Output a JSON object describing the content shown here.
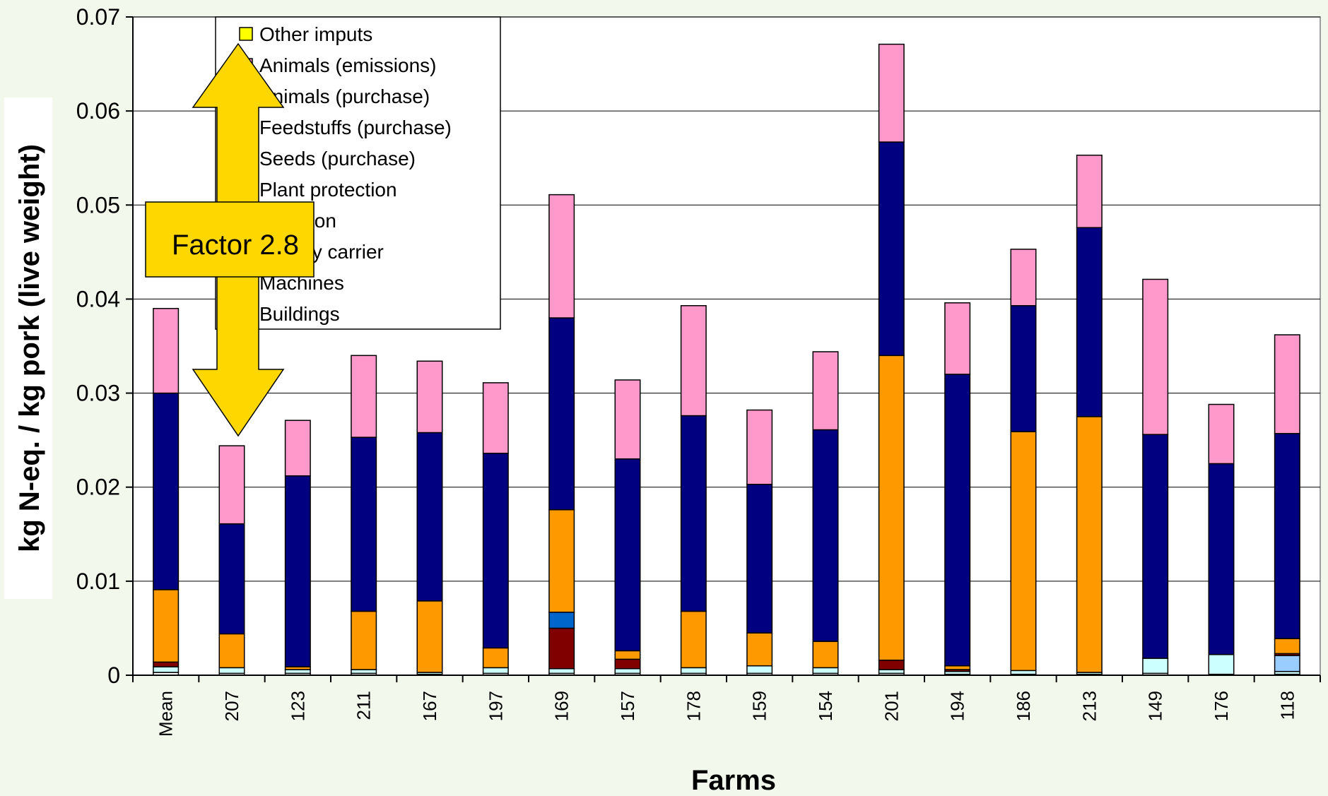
{
  "chart_data": {
    "type": "bar",
    "stacked": true,
    "title": "",
    "xlabel": "Farms",
    "ylabel": "kg N-eq. / kg pork (live weight)",
    "ylim": [
      0,
      0.07
    ],
    "yticks": [
      "0",
      "0.01",
      "0.02",
      "0.03",
      "0.04",
      "0.05",
      "0.06",
      "0.07"
    ],
    "grid": true,
    "legend_position": "top-left",
    "categories": [
      "Mean",
      "207",
      "123",
      "211",
      "167",
      "197",
      "169",
      "157",
      "178",
      "159",
      "154",
      "201",
      "194",
      "186",
      "213",
      "149",
      "176",
      "118"
    ],
    "series": [
      {
        "name": "Buildings",
        "color": "#ffffff",
        "values": [
          0.0003,
          0.0002,
          0.0002,
          0.0002,
          0.0001,
          0.0002,
          0.0002,
          0.0002,
          0.0002,
          0.0002,
          0.0002,
          0.0002,
          0.0001,
          0.0001,
          0.0001,
          0.0002,
          0.0001,
          0.0001
        ]
      },
      {
        "name": "Machines",
        "color": "#ccffff",
        "values": [
          0.0006,
          0.0006,
          0.0004,
          0.0004,
          0.0002,
          0.0006,
          0.0005,
          0.0005,
          0.0006,
          0.0008,
          0.0006,
          0.0004,
          0.0003,
          0.0004,
          0.0002,
          0.0016,
          0.0021,
          0.0003
        ]
      },
      {
        "name": "Energy carrier",
        "color": "#99ccff",
        "values": [
          0,
          0,
          0,
          0,
          0,
          0,
          0,
          0,
          0,
          0,
          0,
          0,
          0,
          0,
          0,
          0,
          0,
          0.0017
        ]
      },
      {
        "name": "Irrigation",
        "color": "#ff99cc",
        "values": [
          0,
          0,
          0,
          0,
          0,
          0,
          0,
          0,
          0,
          0,
          0,
          0,
          0,
          0,
          0,
          0,
          0,
          0
        ]
      },
      {
        "name": "Plant protection",
        "color": "#800000",
        "values": [
          0.0005,
          0,
          0,
          0,
          0,
          0,
          0.0043,
          0.001,
          0,
          0,
          0,
          0.001,
          0.0002,
          0,
          0,
          0,
          0,
          0.0002
        ]
      },
      {
        "name": "Seeds (purchase)",
        "color": "#0066cc",
        "values": [
          0,
          0,
          0,
          0,
          0,
          0,
          0.0017,
          0,
          0,
          0,
          0,
          0,
          0,
          0,
          0,
          0,
          0,
          0
        ]
      },
      {
        "name": "Feedstuffs (purchase)",
        "color": "#ff9900",
        "values": [
          0.0077,
          0.0036,
          0.0003,
          0.0062,
          0.0076,
          0.0021,
          0.0109,
          0.0009,
          0.006,
          0.0035,
          0.0028,
          0.0324,
          0.0004,
          0.0254,
          0.0272,
          0,
          0,
          0.0016
        ]
      },
      {
        "name": "Animals (purchase)",
        "color": "#000080",
        "values": [
          0.0209,
          0.0117,
          0.0203,
          0.0185,
          0.0179,
          0.0207,
          0.0204,
          0.0204,
          0.0208,
          0.0158,
          0.0225,
          0.0227,
          0.031,
          0.0134,
          0.0201,
          0.0238,
          0.0203,
          0.0218
        ]
      },
      {
        "name": "Animals (emissions)",
        "color": "#ff99cc",
        "values": [
          0.009,
          0.0083,
          0.0059,
          0.0087,
          0.0076,
          0.0075,
          0.0131,
          0.0084,
          0.0117,
          0.0079,
          0.0083,
          0.0104,
          0.0076,
          0.006,
          0.0077,
          0.0165,
          0.0063,
          0.0105
        ]
      },
      {
        "name": "Other imputs",
        "color": "#ffff00",
        "values": [
          0,
          0,
          0,
          0,
          0,
          0,
          0,
          0,
          0,
          0,
          0,
          0,
          0,
          0,
          0,
          0,
          0,
          0
        ]
      }
    ],
    "legend": [
      {
        "label": "Other imputs",
        "color": "#ffff00"
      },
      {
        "label": "Animals (emissions)",
        "color": "#ff99cc"
      },
      {
        "label": "Animals (purchase)",
        "color": "#000080"
      },
      {
        "label": "Feedstuffs (purchase)",
        "color": "#ff9900"
      },
      {
        "label": "Seeds (purchase)",
        "color": "#0066cc"
      },
      {
        "label": "Plant protection",
        "color": "#800000"
      },
      {
        "label": "Irrigation",
        "color": "#ff99cc"
      },
      {
        "label": "Energy carrier",
        "color": "#99ccff"
      },
      {
        "label": "Machines",
        "color": "#ccffff"
      },
      {
        "label": "Buildings",
        "color": "#ffffff"
      }
    ],
    "annotation": {
      "text": "Factor 2.8",
      "color": "#ffd700"
    }
  }
}
